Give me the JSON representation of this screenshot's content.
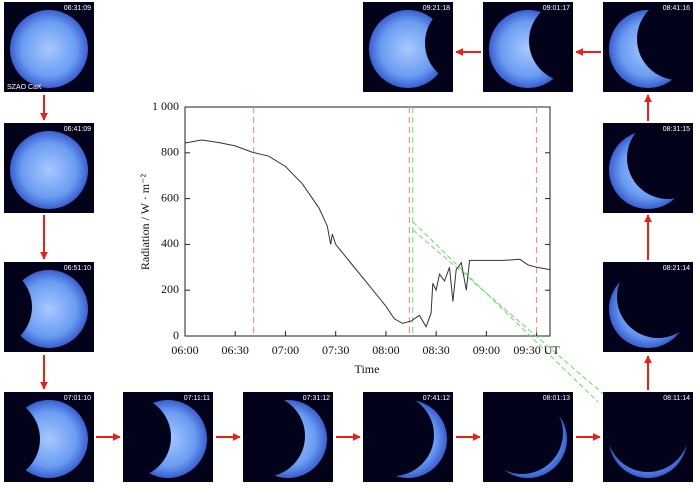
{
  "chart_data": {
    "type": "line",
    "xlabel": "Time",
    "ylabel": "Radiation / W · m⁻²",
    "x": [
      "06:00",
      "06:10",
      "06:20",
      "06:30",
      "06:40",
      "06:50",
      "07:00",
      "07:10",
      "07:20",
      "07:25",
      "07:27",
      "07:28",
      "07:30",
      "07:40",
      "07:50",
      "08:00",
      "08:05",
      "08:10",
      "08:15",
      "08:20",
      "08:24",
      "08:27",
      "08:28",
      "08:30",
      "08:32",
      "08:35",
      "08:38",
      "08:40",
      "08:42",
      "08:45",
      "08:48",
      "08:50",
      "09:00",
      "09:10",
      "09:20",
      "09:25",
      "09:30",
      "09:38"
    ],
    "values": [
      843,
      856,
      845,
      830,
      803,
      785,
      740,
      665,
      560,
      480,
      400,
      445,
      400,
      310,
      220,
      130,
      75,
      55,
      65,
      90,
      40,
      100,
      230,
      200,
      270,
      240,
      300,
      150,
      290,
      320,
      200,
      330,
      330,
      330,
      335,
      310,
      300,
      290
    ],
    "color": "#333333",
    "xlim": [
      "06:00",
      "09:38"
    ],
    "ylim": [
      0,
      1000
    ],
    "xticks": [
      "06:00",
      "06:30",
      "07:00",
      "07:30",
      "08:00",
      "08:30",
      "09:00",
      {
        "value": "09:30",
        "label": "09:30 UT"
      }
    ],
    "yticks": [
      0,
      200,
      400,
      600,
      800,
      {
        "value": 1000,
        "label": "1 000"
      }
    ],
    "red_lines": [
      "06:41",
      "08:14",
      "09:30"
    ],
    "red_color": "#f08080",
    "green_lines": [
      "08:16"
    ],
    "green_color": "#66dd66"
  },
  "panels": [
    {
      "time": "06:31:09",
      "label": "SZAO CaK"
    },
    {
      "time": "06:41:09"
    },
    {
      "time": "06:51:10"
    },
    {
      "time": "07:01:10"
    },
    {
      "time": "07:11:11"
    },
    {
      "time": "07:31:12"
    },
    {
      "time": "07:41:12"
    },
    {
      "time": "08:01:13"
    },
    {
      "time": "08:11:14"
    },
    {
      "time": "08:21:14"
    },
    {
      "time": "08:31:15"
    },
    {
      "time": "08:41:16"
    },
    {
      "time": "09:01:17"
    },
    {
      "time": "09:21:18"
    }
  ]
}
